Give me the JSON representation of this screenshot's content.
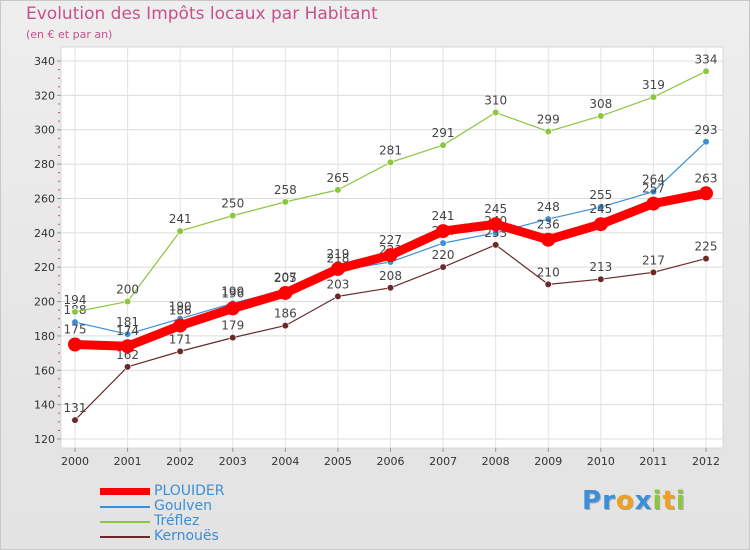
{
  "header": {
    "title": "Evolution des Impôts locaux par Habitant",
    "subtitle": "(en € et par an)"
  },
  "brand": {
    "text": "Proxiti",
    "letters": [
      {
        "ch": "P",
        "color": "#3a8fd8"
      },
      {
        "ch": "r",
        "color": "#3a8fd8"
      },
      {
        "ch": "o",
        "color": "#f0a020"
      },
      {
        "ch": "x",
        "color": "#3a8fd8"
      },
      {
        "ch": "i",
        "color": "#8cc63f"
      },
      {
        "ch": "t",
        "color": "#f0a020"
      },
      {
        "ch": "i",
        "color": "#8cc63f"
      }
    ]
  },
  "chart_data": {
    "type": "line",
    "title": "Evolution des Impôts locaux par Habitant",
    "subtitle": "(en € et par an)",
    "xlabel": "",
    "ylabel": "",
    "x": [
      "2000",
      "2001",
      "2002",
      "2003",
      "2004",
      "2005",
      "2006",
      "2007",
      "2008",
      "2009",
      "2010",
      "2011",
      "2012"
    ],
    "ylim": [
      120,
      340
    ],
    "yticks": [
      120,
      140,
      160,
      180,
      200,
      220,
      240,
      260,
      280,
      300,
      320,
      340
    ],
    "grid": true,
    "legend_position": "bottom-left",
    "series": [
      {
        "name": "PLOUIDER",
        "color": "#ff0000",
        "emphasis": true,
        "values": [
          175,
          174,
          186,
          196,
          205,
          219,
          227,
          241,
          245,
          236,
          245,
          257,
          263
        ],
        "labels": [
          "175",
          "174",
          "186",
          "196",
          "205",
          "219",
          "227",
          "241",
          "245",
          "236",
          "245",
          "257",
          "263"
        ]
      },
      {
        "name": "Goulven",
        "color": "#3a8fd8",
        "emphasis": false,
        "values": [
          188,
          181,
          190,
          199,
          207,
          218,
          223,
          234,
          240,
          248,
          255,
          264,
          293
        ],
        "labels": [
          "188",
          "181",
          "190",
          "199",
          "207",
          "218",
          "223",
          "234",
          "240",
          "248",
          "255",
          "264",
          "293"
        ]
      },
      {
        "name": "Tréflez",
        "color": "#8cc63f",
        "emphasis": false,
        "values": [
          194,
          200,
          241,
          250,
          258,
          265,
          281,
          291,
          310,
          299,
          308,
          319,
          334
        ],
        "labels": [
          "194",
          "200",
          "241",
          "250",
          "258",
          "265",
          "281",
          "291",
          "310",
          "299",
          "308",
          "319",
          "334"
        ]
      },
      {
        "name": "Kernouës",
        "color": "#6b2a2a",
        "emphasis": false,
        "values": [
          131,
          162,
          171,
          179,
          186,
          203,
          208,
          220,
          233,
          210,
          213,
          217,
          225
        ],
        "labels": [
          "131",
          "162",
          "171",
          "179",
          "186",
          "203",
          "208",
          "220",
          "233",
          "210",
          "213",
          "217",
          "225"
        ]
      }
    ]
  }
}
